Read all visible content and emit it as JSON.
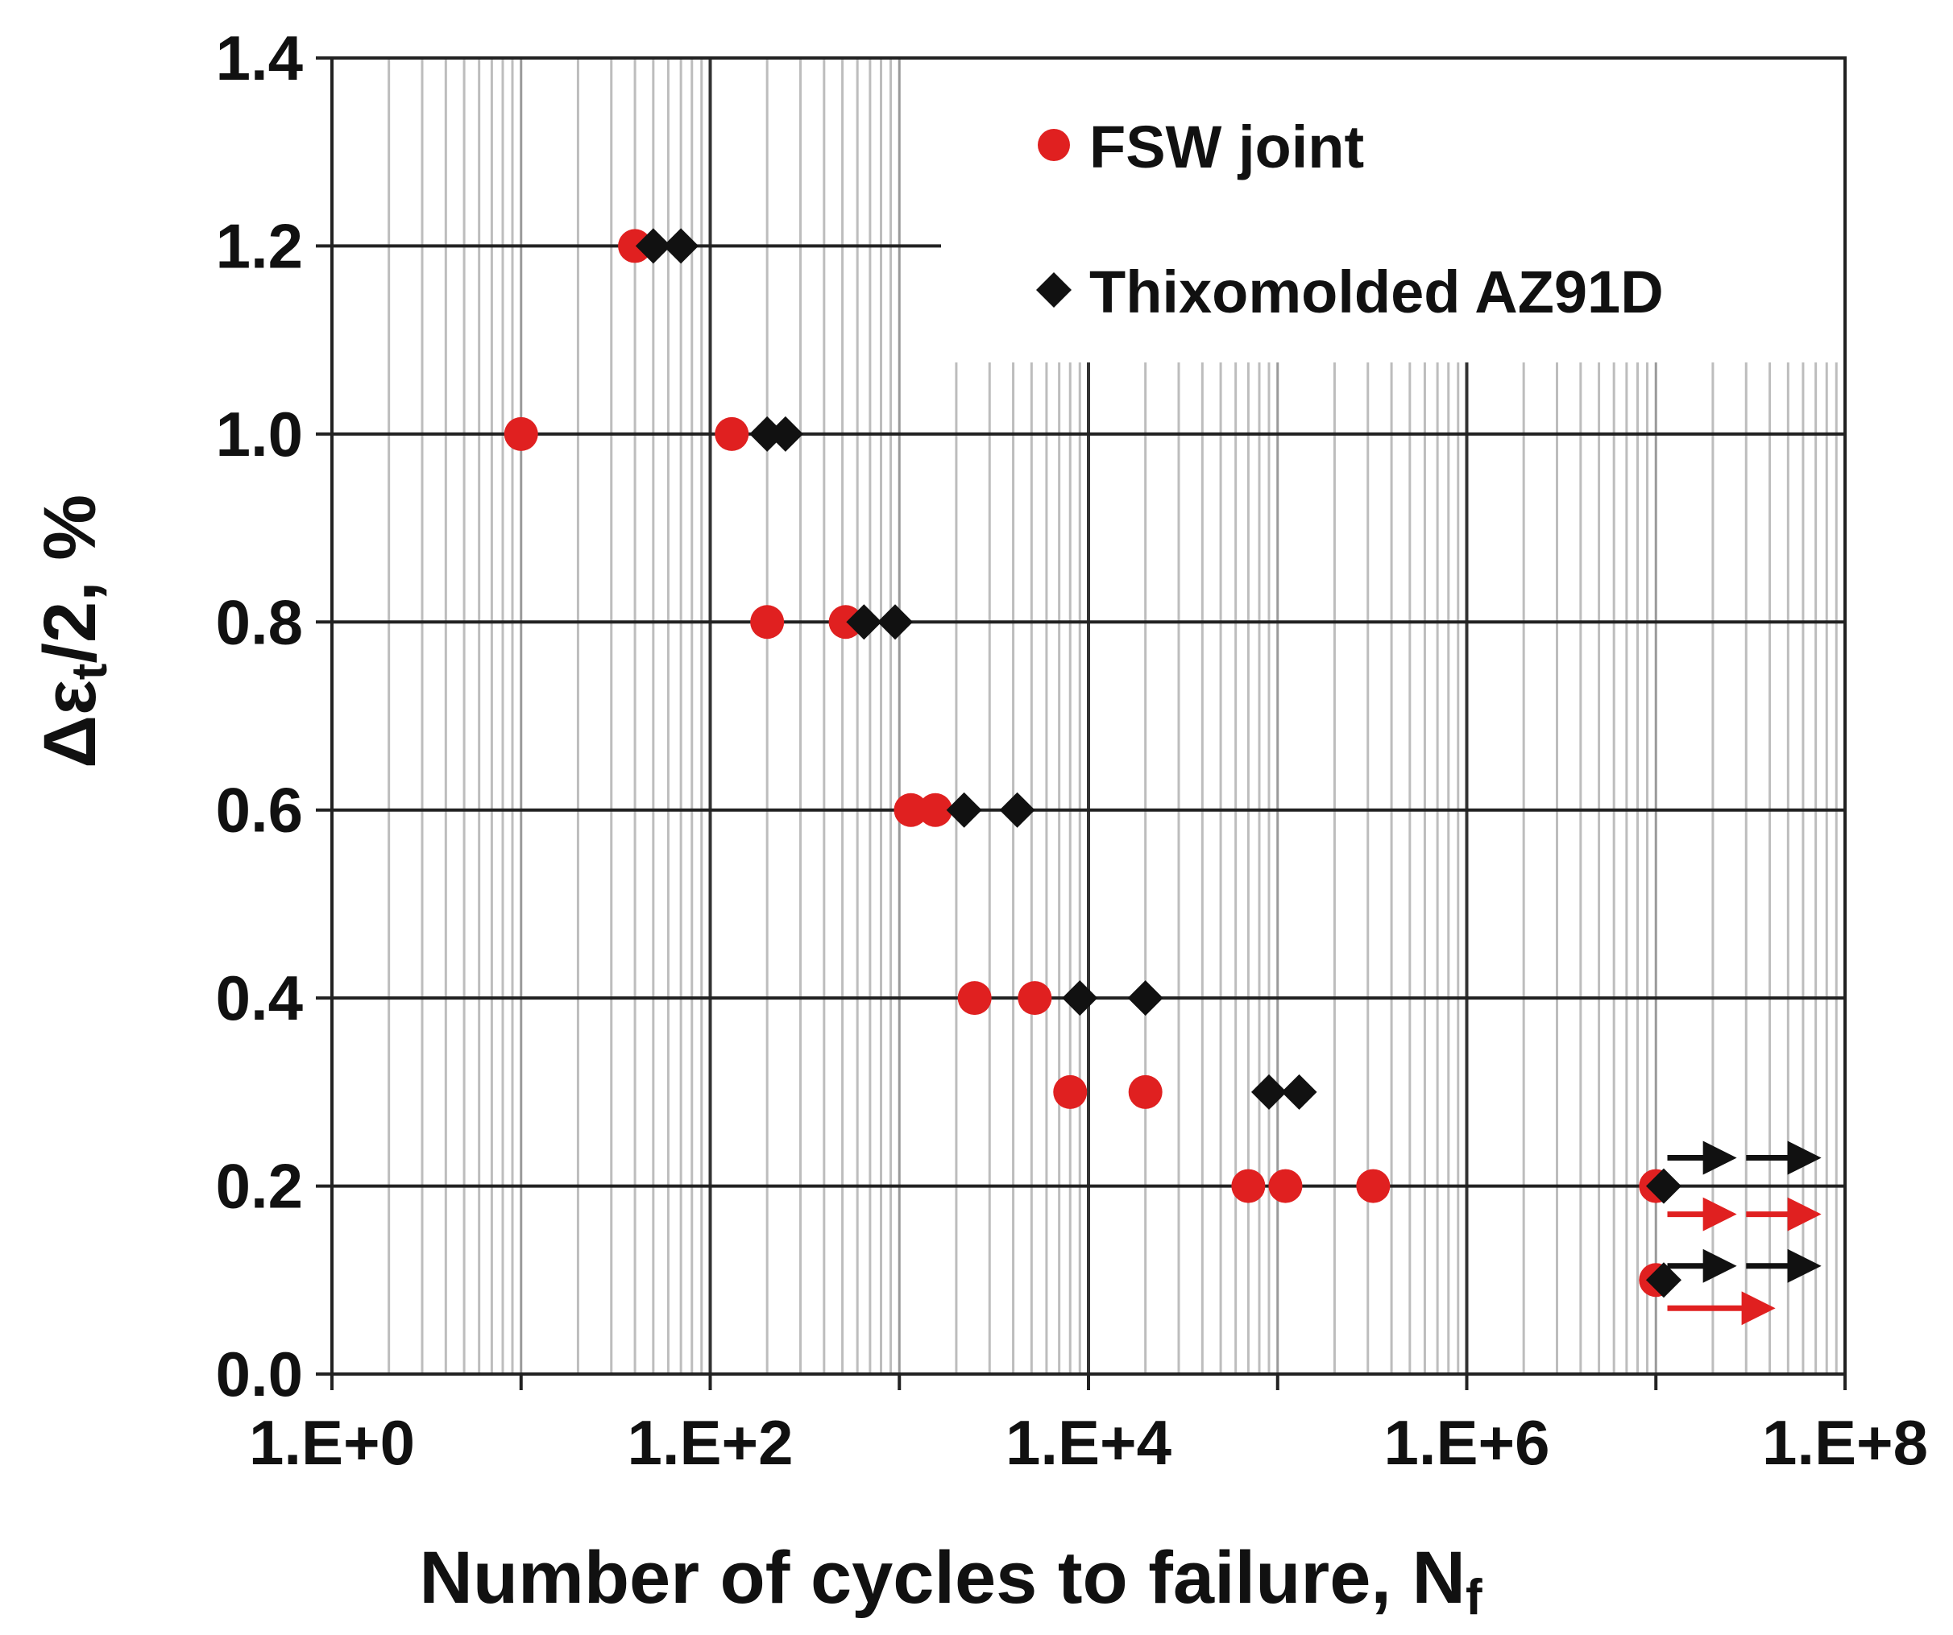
{
  "chart_data": {
    "type": "scatter",
    "xscale": "log",
    "xlim": [
      1,
      100000000
    ],
    "ylim": [
      0,
      1.4
    ],
    "xticks": [
      "1.E+0",
      "1.E+2",
      "1.E+4",
      "1.E+6",
      "1.E+8"
    ],
    "yticks": [
      "0.0",
      "0.2",
      "0.4",
      "0.6",
      "0.8",
      "1.0",
      "1.2",
      "1.4"
    ],
    "xlabel": "Number of cycles to failure, N",
    "xlabel_sub": "f",
    "ylabel": "Δε",
    "ylabel_sub": "t",
    "ylabel_suffix": "/2, %",
    "legend_position": "top-right",
    "series": [
      {
        "name": "FSW joint",
        "color": "#e02020",
        "marker": "circle",
        "points": [
          [
            40,
            1.2
          ],
          [
            10,
            1.0
          ],
          [
            130,
            1.0
          ],
          [
            200,
            0.8
          ],
          [
            520,
            0.8
          ],
          [
            1150,
            0.6
          ],
          [
            1550,
            0.6
          ],
          [
            2500,
            0.4
          ],
          [
            5200,
            0.4
          ],
          [
            8000,
            0.3
          ],
          [
            20000,
            0.3
          ],
          [
            70000,
            0.2
          ],
          [
            110000,
            0.2
          ],
          [
            320000,
            0.2
          ],
          [
            10000000,
            0.2
          ],
          [
            10000000,
            0.1
          ]
        ]
      },
      {
        "name": "Thixomolded AZ91D",
        "color": "#111111",
        "marker": "diamond",
        "points": [
          [
            50,
            1.2
          ],
          [
            70,
            1.2
          ],
          [
            200,
            1.0
          ],
          [
            250,
            1.0
          ],
          [
            650,
            0.8
          ],
          [
            950,
            0.8
          ],
          [
            2200,
            0.6
          ],
          [
            4200,
            0.6
          ],
          [
            9000,
            0.4
          ],
          [
            20000,
            0.4
          ],
          [
            90000,
            0.3
          ],
          [
            130000,
            0.3
          ],
          [
            11000000,
            0.2
          ],
          [
            11000000,
            0.1
          ]
        ]
      }
    ],
    "runouts": [
      {
        "color": "#111111",
        "y": 0.23,
        "x_from": 11500000,
        "x_to": 25000000
      },
      {
        "color": "#111111",
        "y": 0.23,
        "x_from": 30000000,
        "x_to": 70000000
      },
      {
        "color": "#e02020",
        "y": 0.17,
        "x_from": 11500000,
        "x_to": 25000000
      },
      {
        "color": "#e02020",
        "y": 0.17,
        "x_from": 30000000,
        "x_to": 70000000
      },
      {
        "color": "#111111",
        "y": 0.115,
        "x_from": 11500000,
        "x_to": 25000000
      },
      {
        "color": "#111111",
        "y": 0.115,
        "x_from": 30000000,
        "x_to": 70000000
      },
      {
        "color": "#e02020",
        "y": 0.07,
        "x_from": 11500000,
        "x_to": 40000000
      }
    ]
  }
}
